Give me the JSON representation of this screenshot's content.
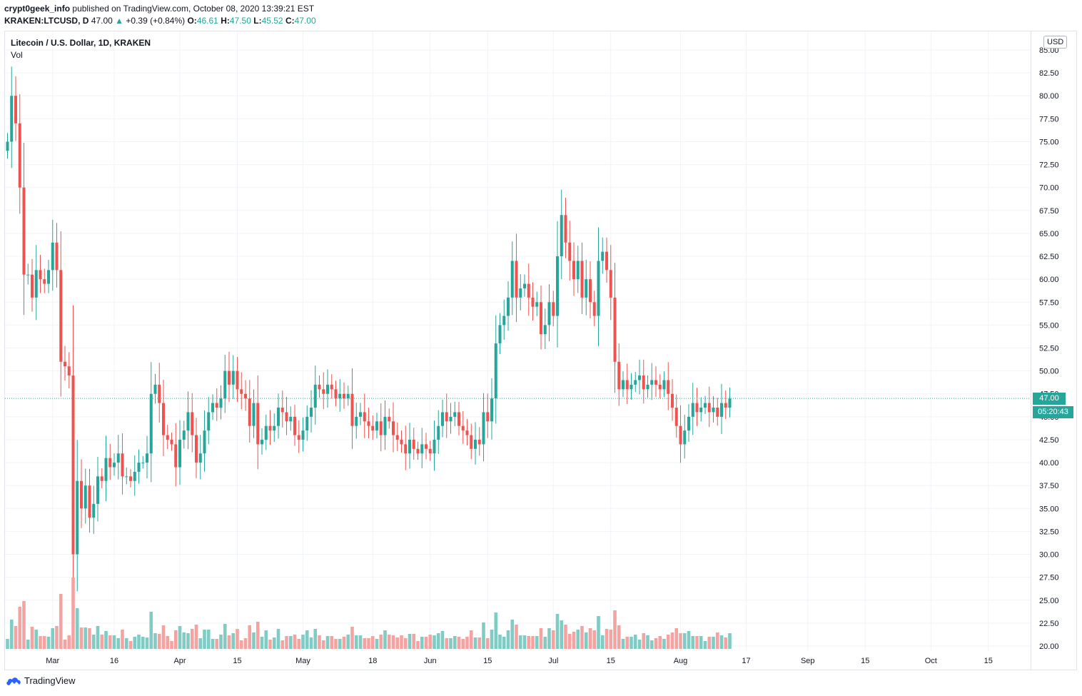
{
  "header": {
    "author": "crypt0geek_info",
    "published_text": "published on TradingView.com, October 08, 2020 13:39:21 EST",
    "symbol": "KRAKEN:LTCUSD, D",
    "last": "47.00",
    "change_arrow": "▲",
    "change": "+0.39 (+0.84%)",
    "o_label": "O:",
    "o": "46.61",
    "h_label": "H:",
    "h": "47.50",
    "l_label": "L:",
    "l": "45.52",
    "c_label": "C:",
    "c": "47.00"
  },
  "legend": {
    "title": "Litecoin / U.S. Dollar, 1D, KRAKEN",
    "volume": "Vol"
  },
  "currency_badge": "USD",
  "last_price_tag": "47.00",
  "countdown_tag": "05:20:43",
  "brand": {
    "name": "TradingView",
    "icon": "tradingview-cloud-icon"
  },
  "colors": {
    "up": "#26a69a",
    "down": "#ef5350",
    "up_vol": "#80cbc4",
    "down_vol": "#f5a3a1",
    "grid": "#f0f3fa",
    "price_line": "#26a69a"
  },
  "chart_data": {
    "type": "candlestick",
    "title": "Litecoin / U.S. Dollar, 1D, KRAKEN",
    "y_axis": {
      "min": 20,
      "max": 85,
      "ticks": [
        "20.00",
        "22.50",
        "25.00",
        "27.50",
        "30.00",
        "32.50",
        "35.00",
        "37.50",
        "40.00",
        "42.50",
        "45.00",
        "47.50",
        "50.00",
        "52.50",
        "55.00",
        "57.50",
        "60.00",
        "62.50",
        "65.00",
        "67.50",
        "70.00",
        "72.50",
        "75.00",
        "77.50",
        "80.00",
        "82.50",
        "85.00"
      ]
    },
    "x_axis": {
      "ticks": [
        {
          "label": "Mar",
          "index": 11
        },
        {
          "label": "16",
          "index": 26
        },
        {
          "label": "Apr",
          "index": 42
        },
        {
          "label": "15",
          "index": 56
        },
        {
          "label": "May",
          "index": 72
        },
        {
          "label": "18",
          "index": 89
        },
        {
          "label": "Jun",
          "index": 103
        },
        {
          "label": "15",
          "index": 117
        },
        {
          "label": "Jul",
          "index": 133
        },
        {
          "label": "15",
          "index": 147
        },
        {
          "label": "Aug",
          "index": 164
        },
        {
          "label": "17",
          "index": 180
        },
        {
          "label": "Sep",
          "index": 195
        },
        {
          "label": "15",
          "index": 209
        },
        {
          "label": "Oct",
          "index": 225
        },
        {
          "label": "15",
          "index": 239
        }
      ]
    },
    "grid": true,
    "last_price": 47.0,
    "closes": [
      75.0,
      80.0,
      77.0,
      70.0,
      60.5,
      60.5,
      58.0,
      61.0,
      60.0,
      59.5,
      61.0,
      64.0,
      61.0,
      51.0,
      50.5,
      49.5,
      30.0,
      38.0,
      35.0,
      37.5,
      34.0,
      35.5,
      38.5,
      38.0,
      40.5,
      39.5,
      40.0,
      41.0,
      38.5,
      38.5,
      38.0,
      39.0,
      40.0,
      40.0,
      41.0,
      47.5,
      48.5,
      46.5,
      43.0,
      42.5,
      42.0,
      39.5,
      42.5,
      43.5,
      45.5,
      43.0,
      40.0,
      41.0,
      43.5,
      45.5,
      46.5,
      46.0,
      47.0,
      50.0,
      48.5,
      50.0,
      48.0,
      47.5,
      47.0,
      44.0,
      46.5,
      42.0,
      42.5,
      44.0,
      43.5,
      44.0,
      46.0,
      45.5,
      44.5,
      45.0,
      43.0,
      42.5,
      43.5,
      45.0,
      46.0,
      48.5,
      48.0,
      47.5,
      48.5,
      48.0,
      47.0,
      47.5,
      47.0,
      47.5,
      44.0,
      45.0,
      45.5,
      44.5,
      44.0,
      43.5,
      44.5,
      43.0,
      45.0,
      44.5,
      43.0,
      42.5,
      42.0,
      41.0,
      42.5,
      41.5,
      41.0,
      42.0,
      41.5,
      41.0,
      42.5,
      44.0,
      45.5,
      44.5,
      45.0,
      45.5,
      44.0,
      43.5,
      43.0,
      41.5,
      42.5,
      42.0,
      45.5,
      44.5,
      47.0,
      53.0,
      55.0,
      56.0,
      58.0,
      62.0,
      58.0,
      59.0,
      59.5,
      58.0,
      57.0,
      57.5,
      54.0,
      55.0,
      57.5,
      56.0,
      62.5,
      67.0,
      64.0,
      62.0,
      60.0,
      62.0,
      58.0,
      60.0,
      57.5,
      56.0,
      62.0,
      63.0,
      61.0,
      58.0,
      51.0,
      48.0,
      49.0,
      48.0,
      48.5,
      49.0,
      49.5,
      48.0,
      48.5,
      49.0,
      48.5,
      48.0,
      49.0,
      47.5,
      46.0,
      44.0,
      42.0,
      43.5,
      45.0,
      46.5,
      45.5,
      46.0,
      46.5,
      45.5,
      46.0,
      45.0,
      46.5,
      46.0,
      47.0
    ]
  }
}
